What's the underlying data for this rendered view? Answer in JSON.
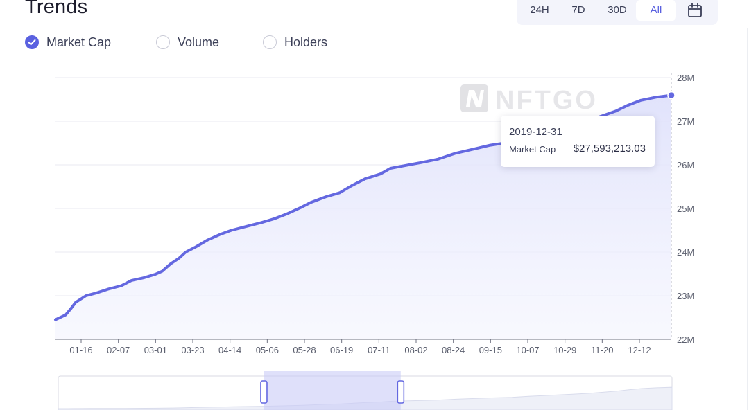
{
  "header": {
    "title": "Trends"
  },
  "time_range": {
    "options": [
      "24H",
      "7D",
      "30D",
      "All"
    ],
    "selected": "All",
    "calendar_icon": "calendar-icon"
  },
  "metrics": [
    {
      "label": "Market Cap",
      "checked": true
    },
    {
      "label": "Volume",
      "checked": false
    },
    {
      "label": "Holders",
      "checked": false
    }
  ],
  "watermark": "NFTGO",
  "tooltip": {
    "date": "2019-12-31",
    "series_label": "Market Cap",
    "value": "$27,593,213.03"
  },
  "colors": {
    "accent": "#5a61e0",
    "line": "#6468e0",
    "area": "#e3e5fb",
    "grid": "#e9eaf0",
    "axis_text": "#5b5f6e"
  },
  "chart_data": {
    "type": "area",
    "x_tick_labels": [
      "01-16",
      "02-07",
      "03-01",
      "03-23",
      "04-14",
      "05-06",
      "05-28",
      "06-19",
      "07-11",
      "08-02",
      "08-24",
      "09-15",
      "10-07",
      "10-29",
      "11-20",
      "12-12"
    ],
    "y_tick_labels": [
      "22M",
      "23M",
      "24M",
      "25M",
      "26M",
      "27M",
      "28M"
    ],
    "ylim": [
      22000000,
      28000000
    ],
    "xlim": [
      "2019-01-01",
      "2019-12-31"
    ],
    "grid": true,
    "series": [
      {
        "name": "Market Cap",
        "points": [
          [
            "2019-01-01",
            22450000
          ],
          [
            "2019-01-07",
            22560000
          ],
          [
            "2019-01-10",
            22700000
          ],
          [
            "2019-01-13",
            22850000
          ],
          [
            "2019-01-19",
            23000000
          ],
          [
            "2019-01-25",
            23060000
          ],
          [
            "2019-02-01",
            23150000
          ],
          [
            "2019-02-09",
            23230000
          ],
          [
            "2019-02-15",
            23350000
          ],
          [
            "2019-02-22",
            23410000
          ],
          [
            "2019-03-01",
            23490000
          ],
          [
            "2019-03-05",
            23560000
          ],
          [
            "2019-03-10",
            23730000
          ],
          [
            "2019-03-15",
            23860000
          ],
          [
            "2019-03-19",
            24000000
          ],
          [
            "2019-03-25",
            24120000
          ],
          [
            "2019-04-01",
            24280000
          ],
          [
            "2019-04-08",
            24400000
          ],
          [
            "2019-04-15",
            24500000
          ],
          [
            "2019-04-25",
            24600000
          ],
          [
            "2019-05-03",
            24680000
          ],
          [
            "2019-05-10",
            24760000
          ],
          [
            "2019-05-18",
            24880000
          ],
          [
            "2019-05-26",
            25020000
          ],
          [
            "2019-06-01",
            25140000
          ],
          [
            "2019-06-10",
            25270000
          ],
          [
            "2019-06-18",
            25360000
          ],
          [
            "2019-06-25",
            25520000
          ],
          [
            "2019-07-03",
            25680000
          ],
          [
            "2019-07-12",
            25790000
          ],
          [
            "2019-07-18",
            25920000
          ],
          [
            "2019-07-26",
            25980000
          ],
          [
            "2019-08-05",
            26050000
          ],
          [
            "2019-08-15",
            26130000
          ],
          [
            "2019-08-25",
            26260000
          ],
          [
            "2019-09-05",
            26360000
          ],
          [
            "2019-09-15",
            26450000
          ],
          [
            "2019-09-27",
            26520000
          ],
          [
            "2019-10-07",
            26650000
          ],
          [
            "2019-10-20",
            26790000
          ],
          [
            "2019-11-01",
            26890000
          ],
          [
            "2019-11-12",
            27010000
          ],
          [
            "2019-11-20",
            27120000
          ],
          [
            "2019-11-28",
            27230000
          ],
          [
            "2019-12-05",
            27360000
          ],
          [
            "2019-12-13",
            27480000
          ],
          [
            "2019-12-22",
            27550000
          ],
          [
            "2019-12-31",
            27593213.03
          ]
        ]
      }
    ],
    "data_zoom": {
      "start": 0.335,
      "end": 0.558
    }
  }
}
